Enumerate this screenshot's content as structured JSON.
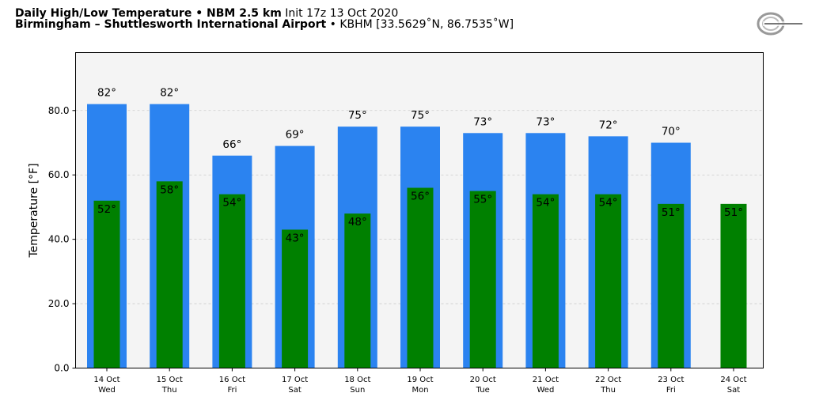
{
  "header": {
    "line1_bold": "Daily High/Low Temperature • NBM 2.5 km",
    "line1_normal": "Init 17z 13 Oct 2020",
    "line2_bold": "Birmingham – Shuttlesworth International Airport",
    "line2_normal": "• KBHM [33.5629˚N, 86.7535˚W]"
  },
  "logo": {
    "icon": "weatherbell-logo"
  },
  "colors": {
    "high": "#2b83f0",
    "low": "#008000",
    "plot_bg": "#f4f4f4",
    "grid": "#cccccc"
  },
  "chart_data": {
    "type": "bar",
    "title": "Daily High/Low Temperature • NBM 2.5 km",
    "ylabel": "Temperature [°F]",
    "xlabel": "",
    "ylim": [
      0,
      98
    ],
    "yticks": [
      "0.0",
      "20.0",
      "40.0",
      "60.0",
      "80.0"
    ],
    "ytick_values": [
      0,
      20,
      40,
      60,
      80
    ],
    "grid": true,
    "categories": [
      {
        "date": "14 Oct",
        "day": "Wed"
      },
      {
        "date": "15 Oct",
        "day": "Thu"
      },
      {
        "date": "16 Oct",
        "day": "Fri"
      },
      {
        "date": "17 Oct",
        "day": "Sat"
      },
      {
        "date": "18 Oct",
        "day": "Sun"
      },
      {
        "date": "19 Oct",
        "day": "Mon"
      },
      {
        "date": "20 Oct",
        "day": "Tue"
      },
      {
        "date": "21 Oct",
        "day": "Wed"
      },
      {
        "date": "22 Oct",
        "day": "Thu"
      },
      {
        "date": "23 Oct",
        "day": "Fri"
      },
      {
        "date": "24 Oct",
        "day": "Sat"
      }
    ],
    "series": [
      {
        "values": [
          82,
          82,
          66,
          69,
          75,
          75,
          73,
          73,
          72,
          70,
          null
        ],
        "labels": [
          "82°",
          "82°",
          "66°",
          "69°",
          "75°",
          "75°",
          "73°",
          "73°",
          "72°",
          "70°",
          null
        ]
      },
      {
        "values": [
          52,
          58,
          54,
          43,
          48,
          56,
          55,
          54,
          54,
          51,
          51
        ],
        "labels": [
          "52°",
          "58°",
          "54°",
          "43°",
          "48°",
          "56°",
          "55°",
          "54°",
          "54°",
          "51°",
          "51°"
        ]
      }
    ]
  }
}
